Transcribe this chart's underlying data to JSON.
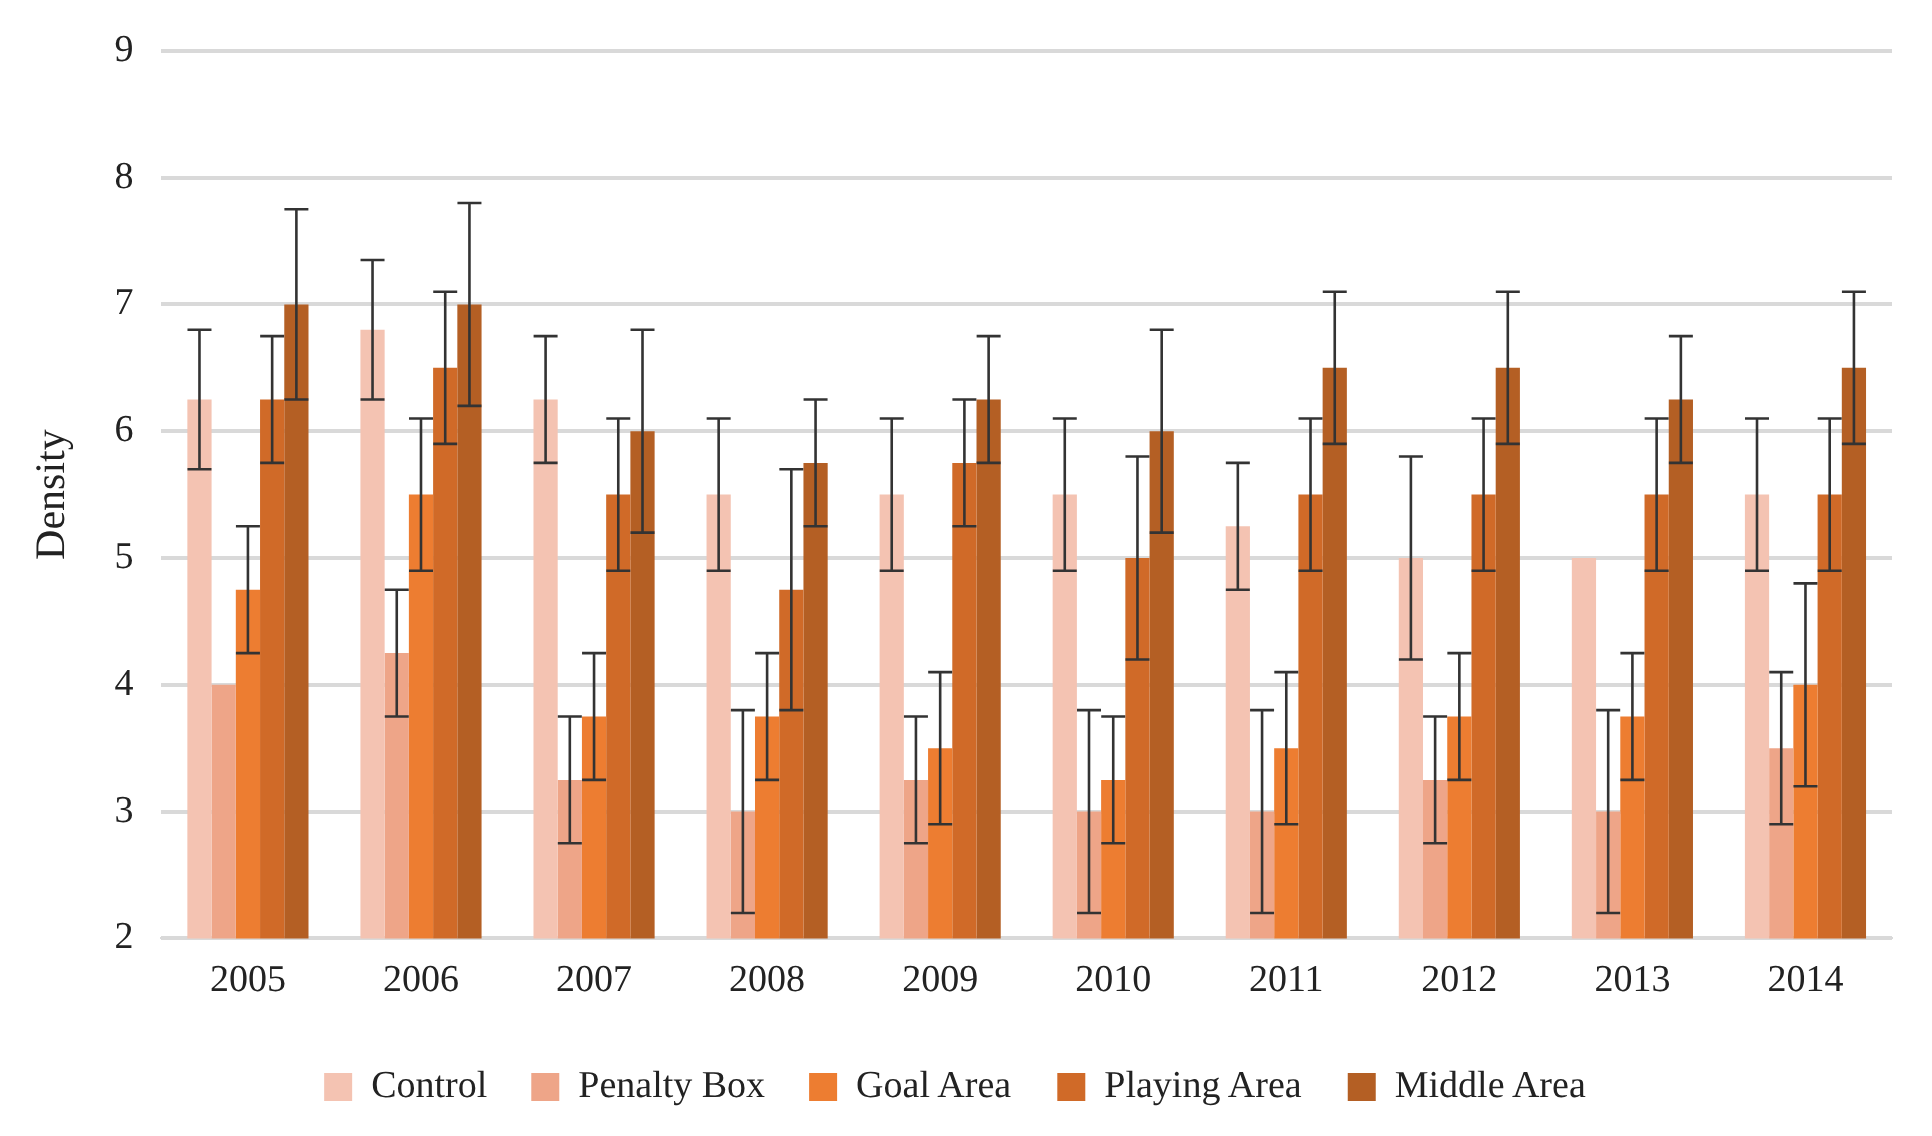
{
  "chart_data": {
    "type": "bar",
    "ylabel": "Density",
    "categories": [
      "2005",
      "2006",
      "2007",
      "2008",
      "2009",
      "2010",
      "2011",
      "2012",
      "2013",
      "2014"
    ],
    "series": [
      {
        "name": "Control",
        "color": "#f4c3b2",
        "values": [
          6.25,
          6.8,
          6.25,
          5.5,
          5.5,
          5.5,
          5.25,
          5.0,
          5.0,
          5.5
        ],
        "errors": [
          0.55,
          0.55,
          0.5,
          0.6,
          0.6,
          0.6,
          0.5,
          0.8,
          null,
          0.6
        ]
      },
      {
        "name": "Penalty Box",
        "color": "#eea588",
        "values": [
          4.0,
          4.25,
          3.25,
          3.0,
          3.25,
          3.0,
          3.0,
          3.25,
          3.0,
          3.5
        ],
        "errors": [
          null,
          0.5,
          0.5,
          0.8,
          0.5,
          0.8,
          0.8,
          0.5,
          0.8,
          0.6
        ]
      },
      {
        "name": "Goal Area",
        "color": "#ed7d31",
        "values": [
          4.75,
          5.5,
          3.75,
          3.75,
          3.5,
          3.25,
          3.5,
          3.75,
          3.75,
          4.0
        ],
        "errors": [
          0.5,
          0.6,
          0.5,
          0.5,
          0.6,
          0.5,
          0.6,
          0.5,
          0.5,
          0.8
        ]
      },
      {
        "name": "Playing Area",
        "color": "#d06a28",
        "values": [
          6.25,
          6.5,
          5.5,
          4.75,
          5.75,
          5.0,
          5.5,
          5.5,
          5.5,
          5.5
        ],
        "errors": [
          0.5,
          0.6,
          0.6,
          0.95,
          0.5,
          0.8,
          0.6,
          0.6,
          0.6,
          0.6
        ]
      },
      {
        "name": "Middle Area",
        "color": "#b45f24",
        "values": [
          7.0,
          7.0,
          6.0,
          5.75,
          6.25,
          6.0,
          6.5,
          6.5,
          6.25,
          6.5
        ],
        "errors": [
          0.75,
          0.8,
          0.8,
          0.5,
          0.5,
          0.8,
          0.6,
          0.6,
          0.5,
          0.6
        ]
      }
    ],
    "ylim": [
      2,
      9
    ],
    "yticks": [
      2,
      3,
      4,
      5,
      6,
      7,
      8,
      9
    ],
    "grid": "y",
    "legend": "bottom"
  }
}
